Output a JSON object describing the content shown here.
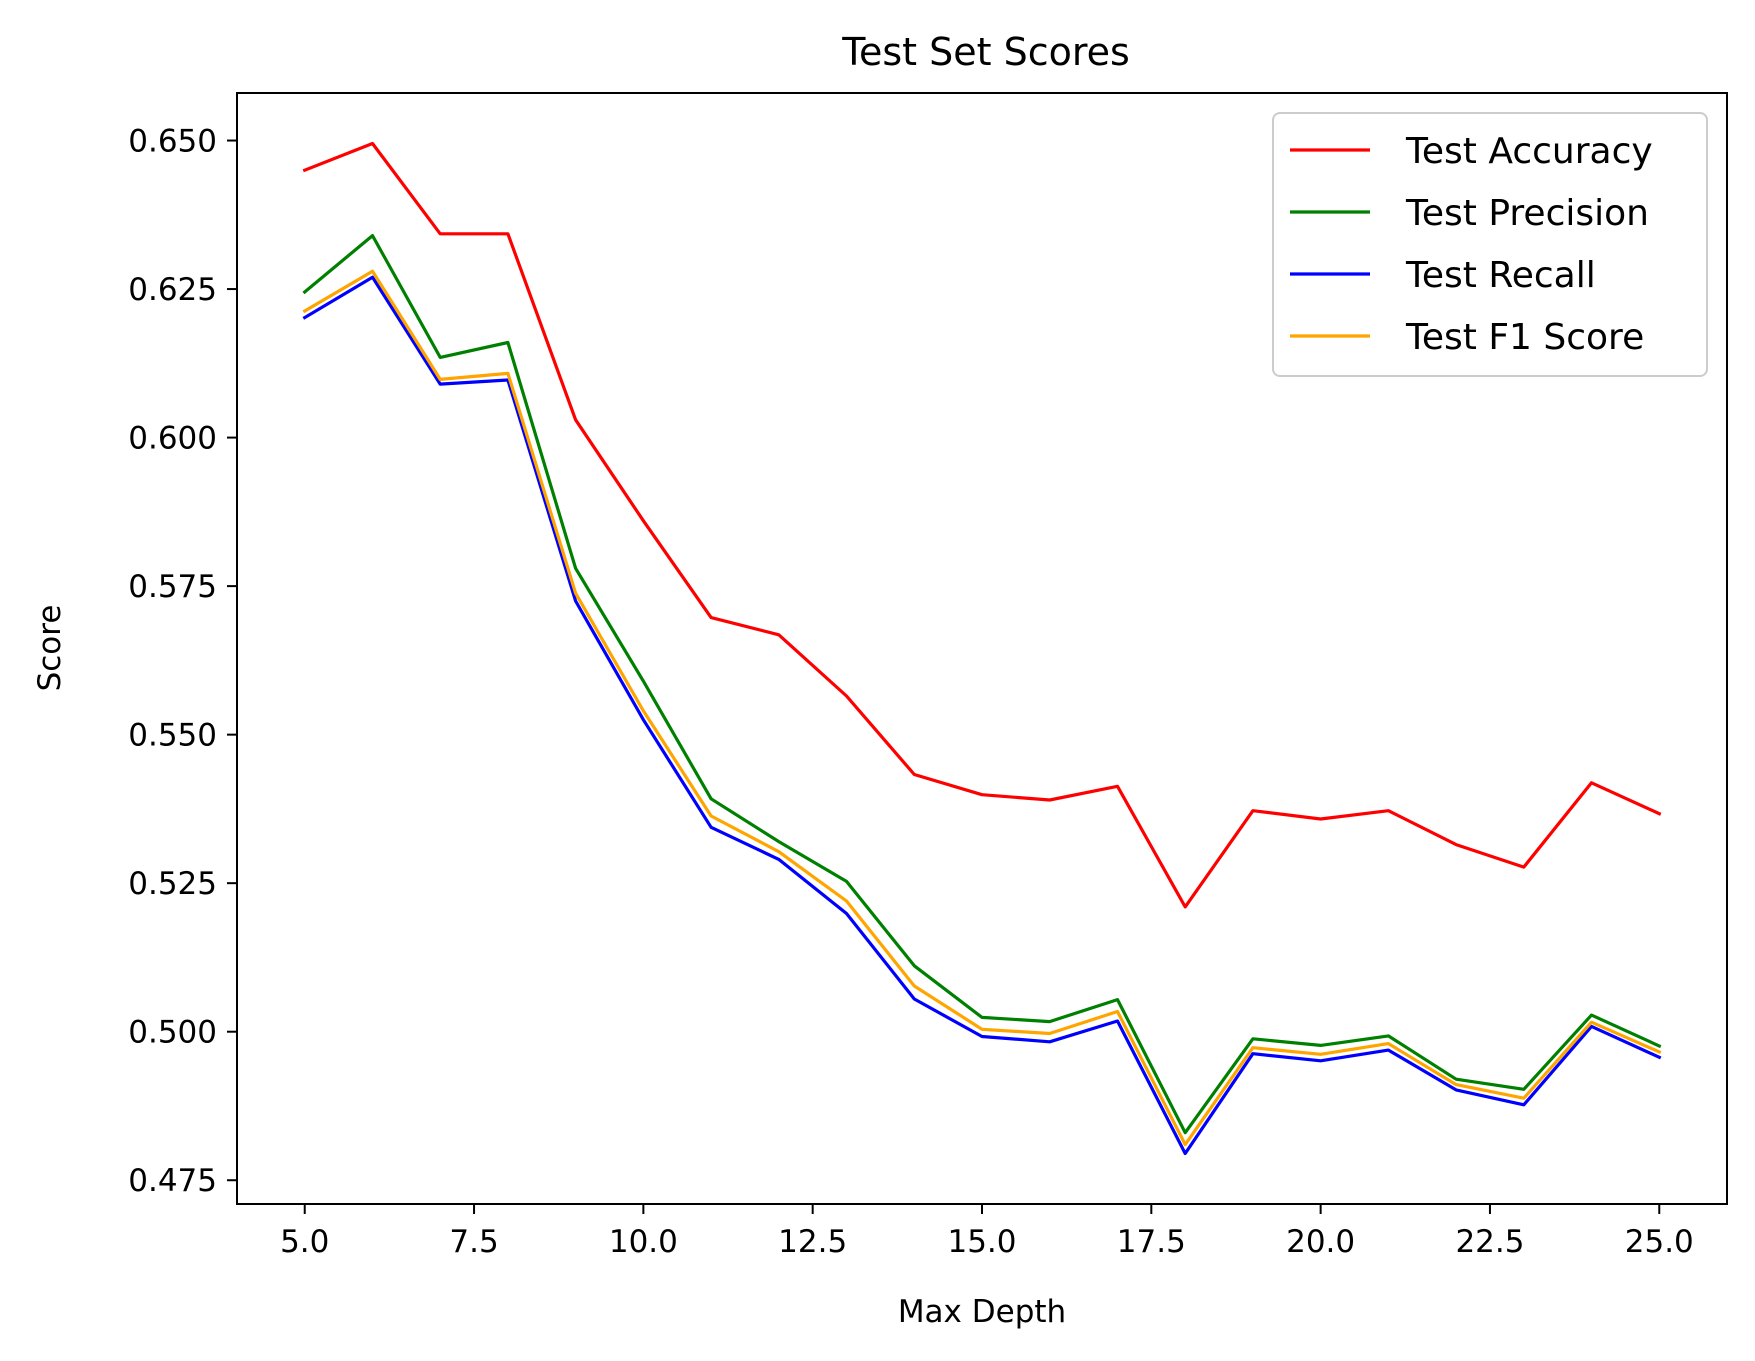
{
  "chart_data": {
    "type": "line",
    "title": "Test Set Scores",
    "xlabel": "Max Depth",
    "ylabel": "Score",
    "xlim": [
      4.0,
      26.0
    ],
    "ylim": [
      0.471,
      0.658
    ],
    "xticks": [
      5.0,
      7.5,
      10.0,
      12.5,
      15.0,
      17.5,
      20.0,
      22.5,
      25.0
    ],
    "xtick_labels": [
      "5.0",
      "7.5",
      "10.0",
      "12.5",
      "15.0",
      "17.5",
      "20.0",
      "22.5",
      "25.0"
    ],
    "yticks": [
      0.475,
      0.5,
      0.525,
      0.55,
      0.575,
      0.6,
      0.625,
      0.65
    ],
    "ytick_labels": [
      "0.475",
      "0.500",
      "0.525",
      "0.550",
      "0.575",
      "0.600",
      "0.625",
      "0.650"
    ],
    "grid": false,
    "legend_position": "top-right",
    "x": [
      5,
      6,
      7,
      8,
      9,
      10,
      11,
      12,
      13,
      14,
      15,
      16,
      17,
      18,
      19,
      20,
      21,
      22,
      23,
      24,
      25
    ],
    "series": [
      {
        "name": "Test Accuracy",
        "color": "#ff0000",
        "values": [
          0.645,
          0.6495,
          0.6343,
          0.6343,
          0.603,
          0.586,
          0.5697,
          0.5668,
          0.5565,
          0.5433,
          0.5399,
          0.539,
          0.5413,
          0.521,
          0.5372,
          0.5358,
          0.5372,
          0.5315,
          0.5277,
          0.5419,
          0.5367
        ]
      },
      {
        "name": "Test Precision",
        "color": "#008000",
        "values": [
          0.6245,
          0.634,
          0.6135,
          0.616,
          0.578,
          0.559,
          0.5392,
          0.532,
          0.5253,
          0.5111,
          0.5024,
          0.5017,
          0.5054,
          0.483,
          0.4988,
          0.4977,
          0.4993,
          0.492,
          0.4903,
          0.5028,
          0.4976
        ]
      },
      {
        "name": "Test Recall",
        "color": "#0000ff",
        "values": [
          0.6202,
          0.627,
          0.609,
          0.6097,
          0.5725,
          0.5525,
          0.5344,
          0.529,
          0.5199,
          0.5055,
          0.4992,
          0.4983,
          0.5018,
          0.4795,
          0.4963,
          0.4951,
          0.4969,
          0.4902,
          0.4877,
          0.5009,
          0.4957
        ]
      },
      {
        "name": "Test F1 Score",
        "color": "#ffa500",
        "values": [
          0.6213,
          0.628,
          0.6098,
          0.6108,
          0.5738,
          0.554,
          0.5363,
          0.5303,
          0.522,
          0.5077,
          0.5004,
          0.4997,
          0.5034,
          0.481,
          0.4973,
          0.4962,
          0.498,
          0.4911,
          0.4888,
          0.5016,
          0.4966
        ]
      }
    ]
  }
}
